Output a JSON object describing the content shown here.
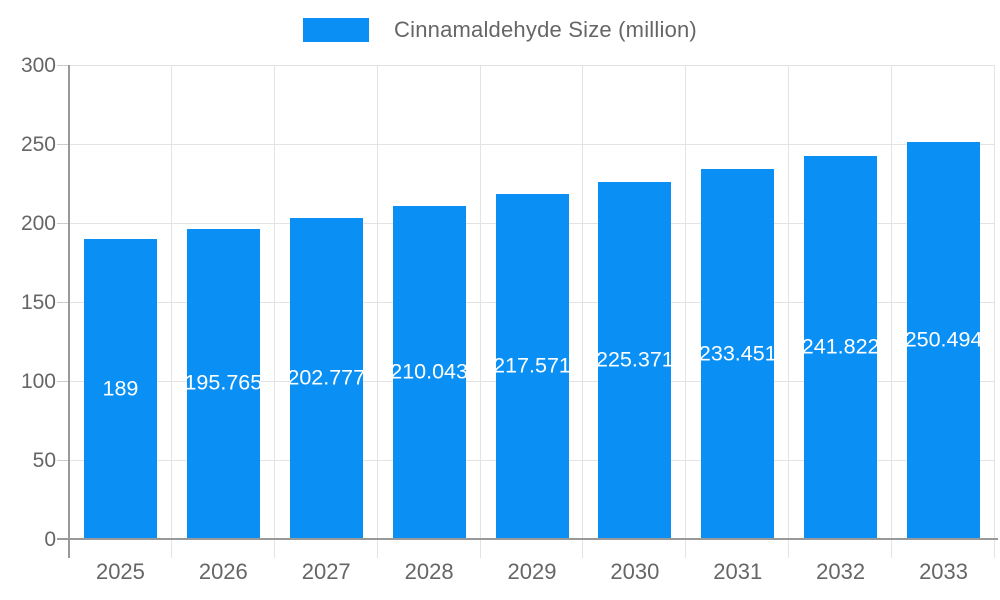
{
  "legend": {
    "label": "Cinnamaldehyde Size (million)"
  },
  "colors": {
    "bar": "#0a90f5",
    "gridline": "#e3e3e3",
    "axis_line": "#999999",
    "tick": "#cccccc",
    "axis_text": "#666666",
    "bar_label_text": "#ffffff"
  },
  "chart_data": {
    "type": "bar",
    "title": "",
    "categories": [
      "2025",
      "2026",
      "2027",
      "2028",
      "2029",
      "2030",
      "2031",
      "2032",
      "2033"
    ],
    "series": [
      {
        "name": "Cinnamaldehyde Size (million)",
        "values": [
          189,
          195.765,
          202.777,
          210.043,
          217.571,
          225.371,
          233.451,
          241.822,
          250.494
        ]
      }
    ],
    "value_labels": [
      "189",
      "195.765",
      "202.777",
      "210.043",
      "217.571",
      "225.371",
      "233.451",
      "241.822",
      "250.494"
    ],
    "xlabel": "",
    "ylabel": "",
    "y_axis": {
      "min": 0,
      "max": 300,
      "step": 50,
      "ticks": [
        "0",
        "50",
        "100",
        "150",
        "200",
        "250",
        "300"
      ]
    },
    "grid": true,
    "legend_position": "top",
    "bar_label_position": "inside-center"
  }
}
